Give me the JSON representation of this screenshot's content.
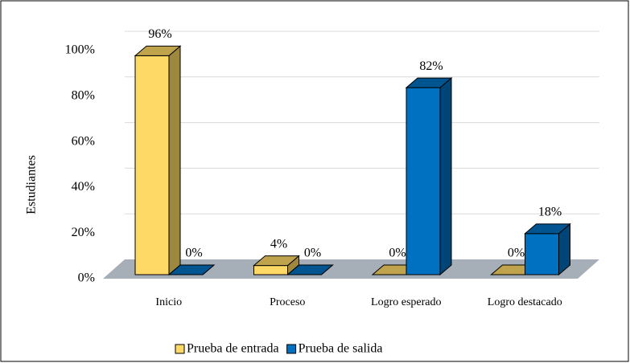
{
  "chart_data": {
    "type": "bar3d",
    "y_label": "Estudiantes",
    "categories": [
      "Inicio",
      "Proceso",
      "Logro esperado",
      "Logro destacado"
    ],
    "series": [
      {
        "name": "Prueba de entrada",
        "color": "#ffd966",
        "values": [
          96,
          4,
          0,
          0
        ],
        "value_labels": [
          "96%",
          "4%",
          "0%",
          "0%"
        ]
      },
      {
        "name": "Prueba de salida",
        "color": "#0070c0",
        "values": [
          0,
          0,
          82,
          18
        ],
        "value_labels": [
          "0%",
          "0%",
          "82%",
          "18%"
        ]
      }
    ],
    "ylim": [
      0,
      100
    ],
    "yticks": [
      {
        "value": 0,
        "label": "0%"
      },
      {
        "value": 20,
        "label": "20%"
      },
      {
        "value": 40,
        "label": "40%"
      },
      {
        "value": 60,
        "label": "60%"
      },
      {
        "value": 80,
        "label": "80%"
      },
      {
        "value": 100,
        "label": "100%"
      }
    ],
    "grid": true,
    "legend": "bottom"
  }
}
